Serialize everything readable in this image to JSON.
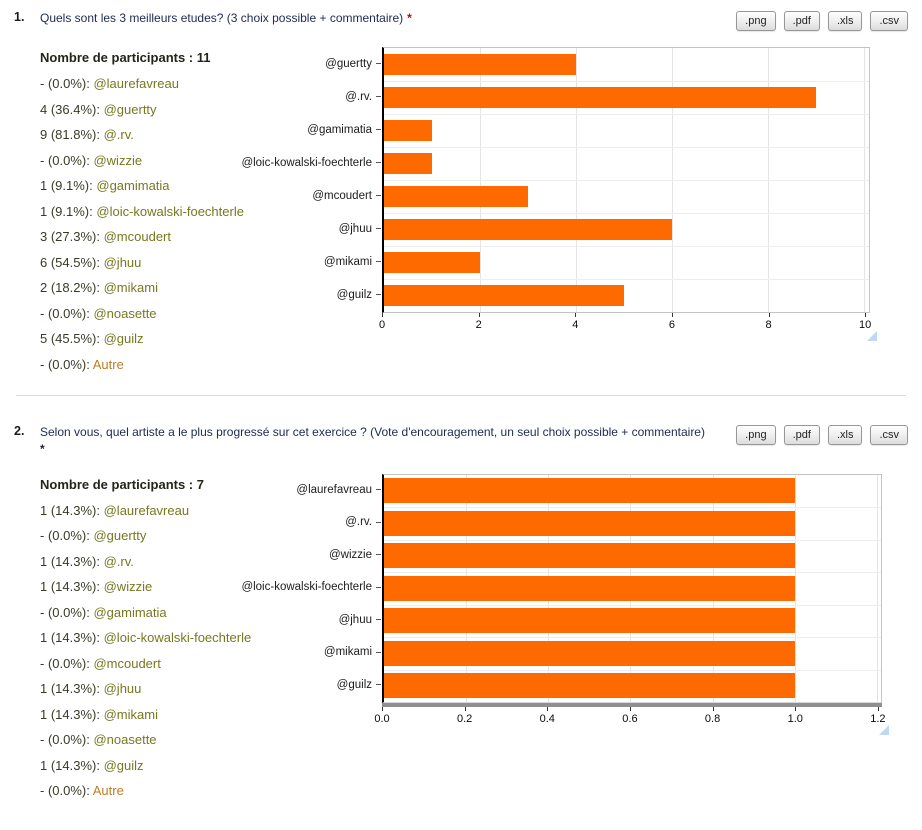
{
  "colors": {
    "bar": "#ff6a00",
    "participant_link": "#76791f",
    "other_option": "#bf7c26",
    "count_text": "#3a3a28",
    "required_mark": "#cc0000"
  },
  "sections": [
    {
      "number": "1.",
      "title": "Quels sont les 3 meilleurs etudes? (3 choix possible + commentaire)",
      "required_mark": "*",
      "export_buttons": [
        ".png",
        ".pdf",
        ".xls",
        ".csv"
      ],
      "participants_label": "Nombre de participants : 11",
      "answers": [
        {
          "value": "- (0.0%):",
          "label": "@laurefavreau"
        },
        {
          "value": "4 (36.4%):",
          "label": "@guertty"
        },
        {
          "value": "9 (81.8%):",
          "label": "@.rv."
        },
        {
          "value": "- (0.0%):",
          "label": "@wizzie"
        },
        {
          "value": "1 (9.1%):",
          "label": "@gamimatia"
        },
        {
          "value": "1 (9.1%):",
          "label": "@loic-kowalski-foechterle"
        },
        {
          "value": "3 (27.3%):",
          "label": "@mcoudert"
        },
        {
          "value": "6 (54.5%):",
          "label": "@jhuu"
        },
        {
          "value": "2 (18.2%):",
          "label": "@mikami"
        },
        {
          "value": "- (0.0%):",
          "label": "@noasette"
        },
        {
          "value": "5 (45.5%):",
          "label": "@guilz"
        },
        {
          "value": "- (0.0%):",
          "label": "Autre"
        }
      ],
      "chart_data": {
        "type": "bar",
        "orientation": "horizontal",
        "categories": [
          "@guertty",
          "@.rv.",
          "@gamimatia",
          "@loic-kowalski-foechterle",
          "@mcoudert",
          "@jhuu",
          "@mikami",
          "@guilz"
        ],
        "values": [
          4,
          9,
          1,
          1,
          3,
          6,
          2,
          5
        ],
        "xlim": [
          0,
          10
        ],
        "ticks": [
          0,
          2,
          4,
          6,
          8,
          10
        ],
        "tick_labels": [
          "0",
          "2",
          "4",
          "6",
          "8",
          "10"
        ],
        "grid": true,
        "legend": "none",
        "bar_color": "#ff6a00"
      }
    },
    {
      "number": "2.",
      "title": "Selon vous, quel artiste a le plus progressé sur cet exercice ? (Vote d'encouragement, un seul choix possible + commentaire)",
      "required_mark": "*",
      "export_buttons": [
        ".png",
        ".pdf",
        ".xls",
        ".csv"
      ],
      "participants_label": "Nombre de participants : 7",
      "answers": [
        {
          "value": "1 (14.3%):",
          "label": "@laurefavreau"
        },
        {
          "value": "- (0.0%):",
          "label": "@guertty"
        },
        {
          "value": "1 (14.3%):",
          "label": "@.rv."
        },
        {
          "value": "1 (14.3%):",
          "label": "@wizzie"
        },
        {
          "value": "- (0.0%):",
          "label": "@gamimatia"
        },
        {
          "value": "1 (14.3%):",
          "label": "@loic-kowalski-foechterle"
        },
        {
          "value": "- (0.0%):",
          "label": "@mcoudert"
        },
        {
          "value": "1 (14.3%):",
          "label": "@jhuu"
        },
        {
          "value": "1 (14.3%):",
          "label": "@mikami"
        },
        {
          "value": "- (0.0%):",
          "label": "@noasette"
        },
        {
          "value": "1 (14.3%):",
          "label": "@guilz"
        },
        {
          "value": "- (0.0%):",
          "label": "Autre"
        }
      ],
      "chart_data": {
        "type": "bar",
        "orientation": "horizontal",
        "categories": [
          "@laurefavreau",
          "@.rv.",
          "@wizzie",
          "@loic-kowalski-foechterle",
          "@jhuu",
          "@mikami",
          "@guilz"
        ],
        "values": [
          1,
          1,
          1,
          1,
          1,
          1,
          1
        ],
        "xlim": [
          0,
          1.2
        ],
        "ticks": [
          0,
          0.2,
          0.4,
          0.6,
          0.8,
          1.0,
          1.2
        ],
        "tick_labels": [
          "0.0",
          "0.2",
          "0.4",
          "0.6",
          "0.8",
          "1.0",
          "1.2"
        ],
        "grid": true,
        "legend": "none",
        "bar_color": "#ff6a00"
      }
    }
  ]
}
